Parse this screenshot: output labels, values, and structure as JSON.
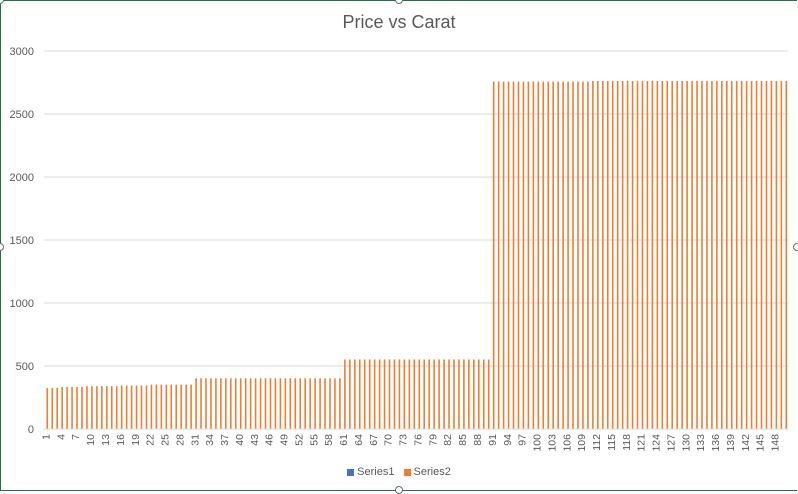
{
  "chart_data": {
    "type": "bar",
    "title": "Price vs Carat",
    "xlabel": "",
    "ylabel": "",
    "ylim": [
      0,
      3000
    ],
    "yticks": [
      0,
      500,
      1000,
      1500,
      2000,
      2500,
      3000
    ],
    "grid": true,
    "legend_position": "bottom",
    "categories_range": [
      1,
      150
    ],
    "xtick_labels": [
      "1",
      "4",
      "7",
      "10",
      "13",
      "16",
      "19",
      "22",
      "25",
      "28",
      "31",
      "34",
      "37",
      "40",
      "43",
      "46",
      "49",
      "52",
      "55",
      "58",
      "61",
      "64",
      "67",
      "70",
      "73",
      "76",
      "79",
      "82",
      "85",
      "88",
      "91",
      "94",
      "97",
      "100",
      "103",
      "106",
      "109",
      "112",
      "115",
      "118",
      "121",
      "124",
      "127",
      "130",
      "133",
      "136",
      "139",
      "142",
      "145",
      "148"
    ],
    "series": [
      {
        "name": "Series1",
        "color": "#4472C4",
        "segments": [
          {
            "from": 1,
            "to": 150,
            "value": 0.5
          }
        ]
      },
      {
        "name": "Series2",
        "color": "#ED7D31",
        "segments": [
          {
            "from": 1,
            "to": 3,
            "value": 326
          },
          {
            "from": 4,
            "to": 8,
            "value": 334
          },
          {
            "from": 9,
            "to": 15,
            "value": 340
          },
          {
            "from": 16,
            "to": 21,
            "value": 345
          },
          {
            "from": 22,
            "to": 30,
            "value": 352
          },
          {
            "from": 31,
            "to": 60,
            "value": 402
          },
          {
            "from": 61,
            "to": 90,
            "value": 552
          },
          {
            "from": 91,
            "to": 110,
            "value": 2757
          },
          {
            "from": 111,
            "to": 150,
            "value": 2762
          }
        ]
      }
    ]
  }
}
